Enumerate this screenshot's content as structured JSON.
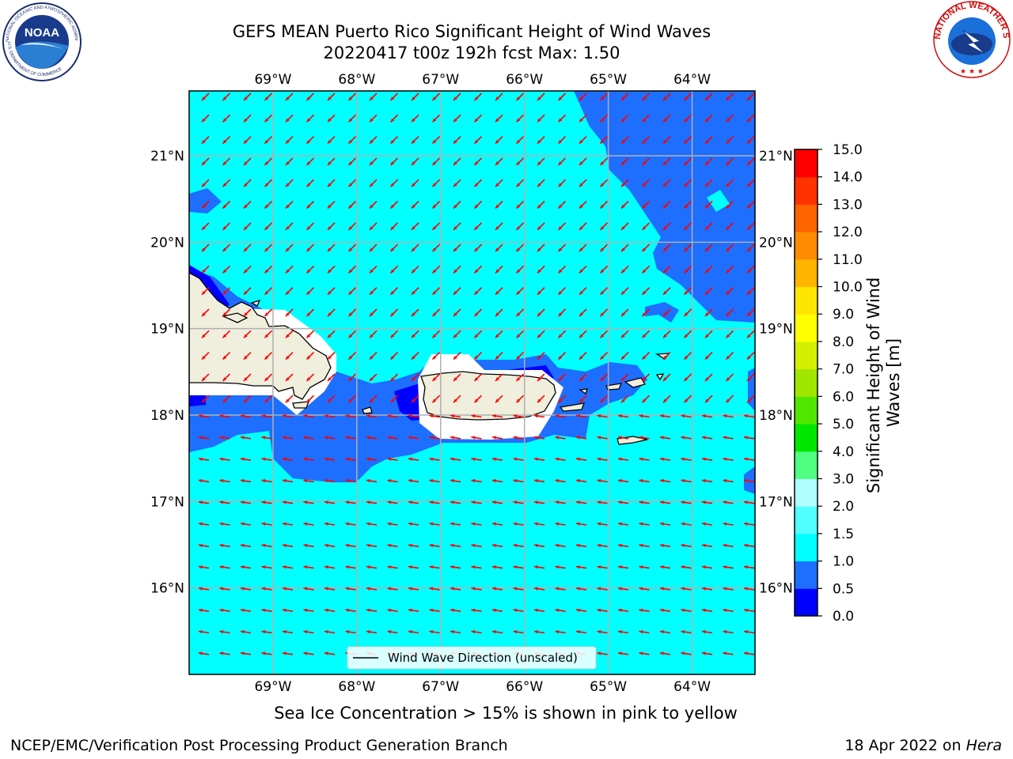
{
  "title": {
    "line1": "GEFS MEAN Puerto Rico Significant Height of Wind Waves",
    "line2": "20220417 t00z 192h fcst   Max: 1.50"
  },
  "logos": {
    "noaa": {
      "center_text": "NOAA",
      "ring_text": "NATIONAL OCEANIC AND ATMOSPHERIC ADMINISTRATION",
      "bottom_text": "U.S. DEPARTMENT OF COMMERCE"
    },
    "nws": {
      "ring_text": "NATIONAL WEATHER SERVICE"
    }
  },
  "map": {
    "lon_labels": [
      "69°W",
      "68°W",
      "67°W",
      "66°W",
      "65°W",
      "64°W"
    ],
    "lat_labels": [
      "21°N",
      "20°N",
      "19°N",
      "18°N",
      "17°N",
      "16°N"
    ],
    "lon_range": [
      -70.0,
      -63.25
    ],
    "lat_range": [
      15.0,
      21.75
    ],
    "grid": true,
    "colors": {
      "wave_0_0p5": "#0000ff",
      "wave_0p5_1p0": "#1e6eff",
      "wave_1p0_1p5": "#00ffff",
      "land": "#f0eedc",
      "no_data": "#ffffff",
      "arrows": "#ff0000",
      "grid": "#b0b0b0"
    },
    "legend_label": "Wind Wave Direction (unscaled)"
  },
  "colorbar": {
    "label": "Significant Height of Wind Waves [m]",
    "ticks": [
      "0.0",
      "0.5",
      "1.0",
      "1.5",
      "2.0",
      "3.0",
      "4.0",
      "5.0",
      "6.0",
      "7.0",
      "8.0",
      "9.0",
      "10.0",
      "11.0",
      "12.0",
      "13.0",
      "14.0",
      "15.0"
    ],
    "colors": [
      "#0000ff",
      "#1e6eff",
      "#00ffff",
      "#50ffff",
      "#b0ffff",
      "#50ff80",
      "#00e600",
      "#50e600",
      "#a0e600",
      "#d2f000",
      "#ffff00",
      "#ffe600",
      "#ffb400",
      "#ff8c00",
      "#ff6400",
      "#ff3200",
      "#ff0000"
    ]
  },
  "ice_note": "Sea Ice Concentration > 15% is shown in pink to yellow",
  "footer": {
    "left": "NCEP/EMC/Verification Post Processing Product Generation Branch",
    "date": "18 Apr 2022 on ",
    "machine": "Hera"
  }
}
